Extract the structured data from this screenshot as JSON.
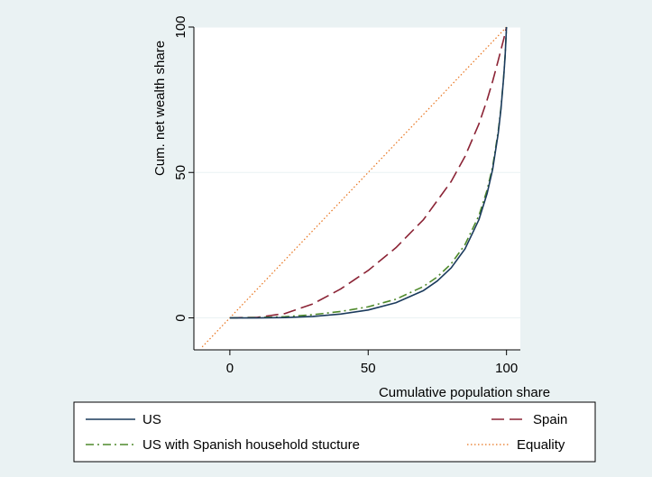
{
  "chart_data": {
    "type": "line",
    "xlabel": "Cumulative population share",
    "ylabel": "Cum. net wealth share",
    "xlim": [
      -13,
      105
    ],
    "ylim": [
      -11,
      100
    ],
    "xticks": [
      0,
      50,
      100
    ],
    "yticks": [
      0,
      50,
      100
    ],
    "grid": true,
    "legend_position": "bottom",
    "series": [
      {
        "name": "US",
        "color": "#1a3a5c",
        "dash": "solid",
        "x": [
          0,
          10,
          20,
          30,
          40,
          50,
          60,
          70,
          75,
          80,
          85,
          90,
          93,
          95,
          97,
          98,
          99,
          99.5,
          100
        ],
        "y": [
          0,
          0,
          0.1,
          0.5,
          1.3,
          2.7,
          5.2,
          9.4,
          12.7,
          17.2,
          23.7,
          33.7,
          42.8,
          51.1,
          63.4,
          71.8,
          83.0,
          90.0,
          100
        ]
      },
      {
        "name": "Spain",
        "color": "#8b2335",
        "dash": "long",
        "x": [
          0,
          10,
          20,
          30,
          40,
          50,
          60,
          70,
          80,
          85,
          90,
          93,
          95,
          97,
          98,
          99,
          100
        ],
        "y": [
          0,
          0.2,
          1.5,
          4.8,
          9.9,
          16.3,
          24.1,
          33.8,
          46.9,
          55.5,
          66.6,
          75.0,
          81.4,
          88.5,
          92.2,
          95.9,
          100
        ]
      },
      {
        "name": "US with Spanish household stucture",
        "color": "#4f8a2b",
        "dash": "dashdot",
        "x": [
          0,
          10,
          20,
          30,
          40,
          50,
          60,
          70,
          75,
          80,
          85,
          90,
          93,
          95,
          97,
          98,
          99,
          99.5,
          100
        ],
        "y": [
          0,
          0.1,
          0.4,
          1.1,
          2.2,
          3.8,
          6.4,
          10.8,
          14.1,
          18.6,
          25.2,
          35.1,
          44.0,
          52.1,
          64.1,
          72.3,
          83.3,
          90.3,
          100
        ]
      },
      {
        "name": "Equality",
        "color": "#e8731c",
        "dash": "dotted",
        "x": [
          -10,
          100
        ],
        "y": [
          -10,
          100
        ]
      }
    ]
  }
}
